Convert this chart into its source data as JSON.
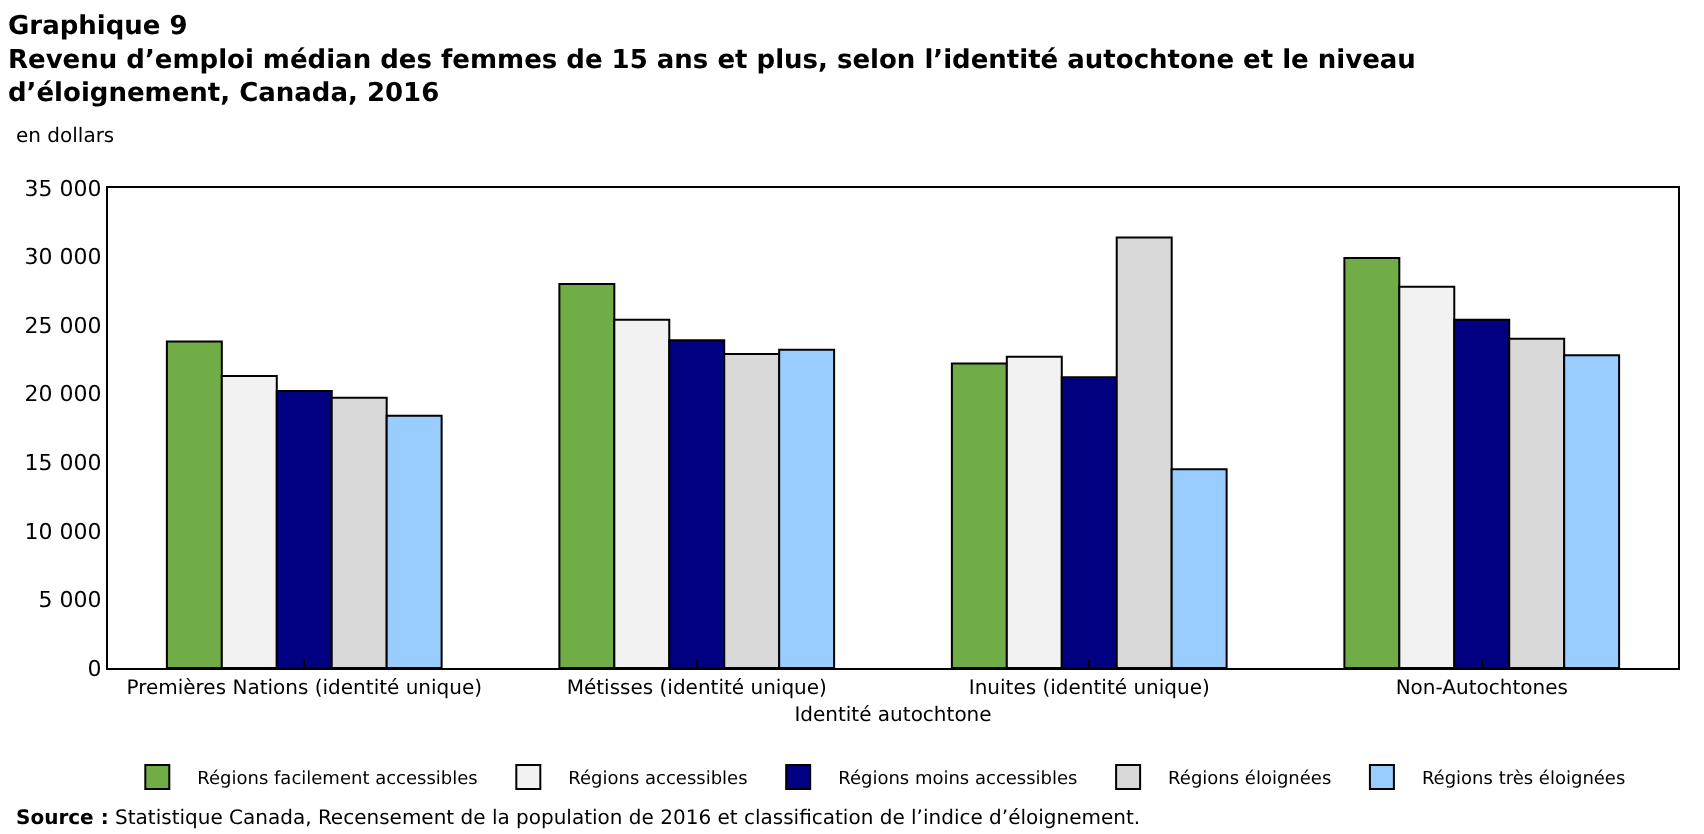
{
  "chart_data": {
    "type": "bar",
    "title": "Graphique 9\nRevenu d’emploi médian des femmes de 15 ans et plus, selon l’identité autochtone et le niveau\nd’éloignement, Canada, 2016",
    "ylabel": "en dollars",
    "xlabel": "Identité autochtone",
    "categories": [
      "Premières Nations (identité unique)",
      "Métisses (identité unique)",
      "Inuites (identité unique)",
      "Non-Autochtones"
    ],
    "series": [
      {
        "name": "Régions facilement accessibles",
        "color": "#70ad47",
        "values": [
          23800,
          28000,
          22200,
          29900
        ]
      },
      {
        "name": "Régions accessibles",
        "color": "#f2f2f2",
        "values": [
          21300,
          25400,
          22700,
          27800
        ]
      },
      {
        "name": "Régions moins accessibles",
        "color": "#000080",
        "values": [
          20200,
          23900,
          21200,
          25400
        ]
      },
      {
        "name": "Régions éloignées",
        "color": "#d9d9d9",
        "values": [
          19700,
          22900,
          31400,
          24000
        ]
      },
      {
        "name": "Régions très éloignées",
        "color": "#99ccff",
        "values": [
          18400,
          23200,
          14500,
          22800
        ]
      }
    ],
    "ylim": [
      0,
      35000
    ],
    "yticks": [
      {
        "value": 0,
        "label": "0"
      },
      {
        "value": 5000,
        "label": "5 000"
      },
      {
        "value": 10000,
        "label": "10 000"
      },
      {
        "value": 15000,
        "label": "15 000"
      },
      {
        "value": 20000,
        "label": "20 000"
      },
      {
        "value": 25000,
        "label": "25 000"
      },
      {
        "value": 30000,
        "label": "30 000"
      },
      {
        "value": 35000,
        "label": "35 000"
      }
    ],
    "legend": "bottom",
    "annotations": [
      "Source : Statistique Canada, Recensement de la population de 2016 et classification de l’indice d’éloignement."
    ]
  }
}
